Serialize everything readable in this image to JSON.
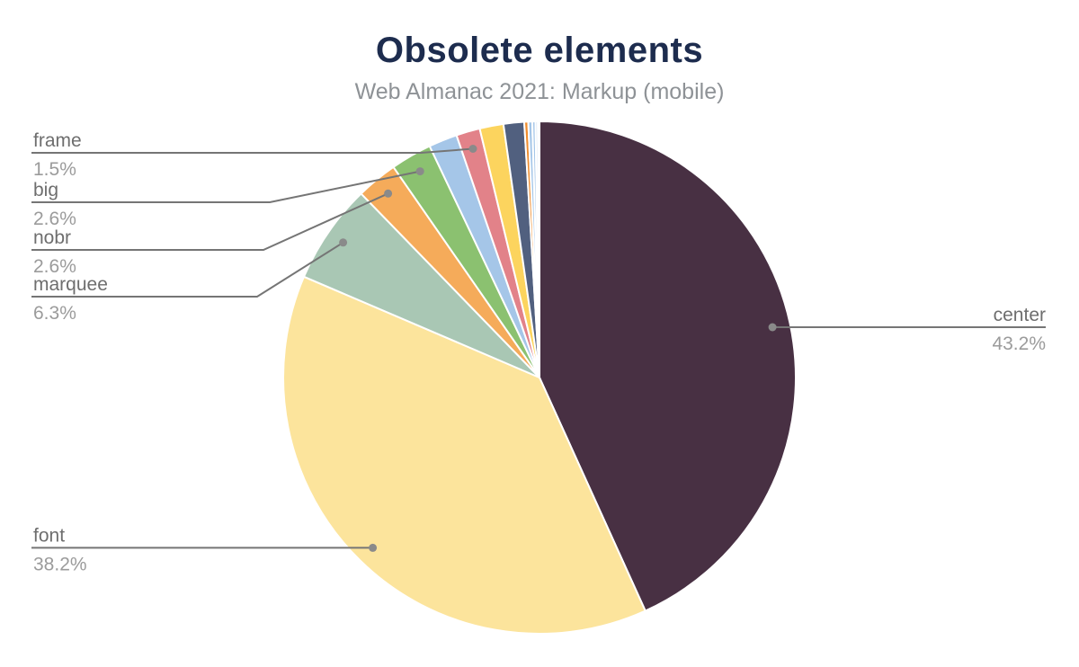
{
  "header": {
    "title": "Obsolete elements",
    "subtitle": "Web Almanac 2021: Markup (mobile)"
  },
  "colors": {
    "background": "#ffffff",
    "title_text": "#1d2c4e",
    "subtitle_text": "#8e9296",
    "callout_name_text": "#6e6e6e",
    "callout_value_text": "#9b9b9b",
    "leader_line": "#757575",
    "leader_dot": "#8a8a8a",
    "slice_border": "#ffffff"
  },
  "chart_data": {
    "type": "pie",
    "title": "Obsolete elements",
    "subtitle": "Web Almanac 2021: Markup (mobile)",
    "unit": "%",
    "start_angle_deg": 0,
    "direction": "clockwise",
    "legend_position": "none",
    "annotation_style": "leader-line-callouts",
    "slices": [
      {
        "label": "center",
        "value": 43.2,
        "color": "#483043",
        "labeled": true,
        "label_side": "right"
      },
      {
        "label": "font",
        "value": 38.2,
        "color": "#fce49c",
        "labeled": true,
        "label_side": "left"
      },
      {
        "label": "marquee",
        "value": 6.3,
        "color": "#a9c7b4",
        "labeled": true,
        "label_side": "left"
      },
      {
        "label": "nobr",
        "value": 2.6,
        "color": "#f5ab5a",
        "labeled": true,
        "label_side": "left"
      },
      {
        "label": "big",
        "value": 2.6,
        "color": "#8bc170",
        "labeled": true,
        "label_side": "left"
      },
      {
        "label": "",
        "value": 1.8,
        "color": "#a5c6e8",
        "labeled": false
      },
      {
        "label": "frame",
        "value": 1.5,
        "color": "#e28289",
        "labeled": true,
        "label_side": "left"
      },
      {
        "label": "",
        "value": 1.5,
        "color": "#fcd45e",
        "labeled": false
      },
      {
        "label": "",
        "value": 1.3,
        "color": "#51607f",
        "labeled": false
      },
      {
        "label": "",
        "value": 0.25,
        "color": "#ef8d2e",
        "labeled": false
      },
      {
        "label": "",
        "value": 0.25,
        "color": "#a5c6e8",
        "labeled": false
      },
      {
        "label": "",
        "value": 0.2,
        "color": "#a5c6e8",
        "labeled": false
      },
      {
        "label": "",
        "value": 0.15,
        "color": "#cfdff2",
        "labeled": false
      },
      {
        "label": "",
        "value": 0.1,
        "color": "#a5c6e8",
        "labeled": false
      }
    ],
    "labeled_callouts": [
      {
        "label": "frame",
        "display_value": "1.5%"
      },
      {
        "label": "big",
        "display_value": "2.6%"
      },
      {
        "label": "nobr",
        "display_value": "2.6%"
      },
      {
        "label": "marquee",
        "display_value": "6.3%"
      },
      {
        "label": "font",
        "display_value": "38.2%"
      },
      {
        "label": "center",
        "display_value": "43.2%"
      }
    ]
  }
}
